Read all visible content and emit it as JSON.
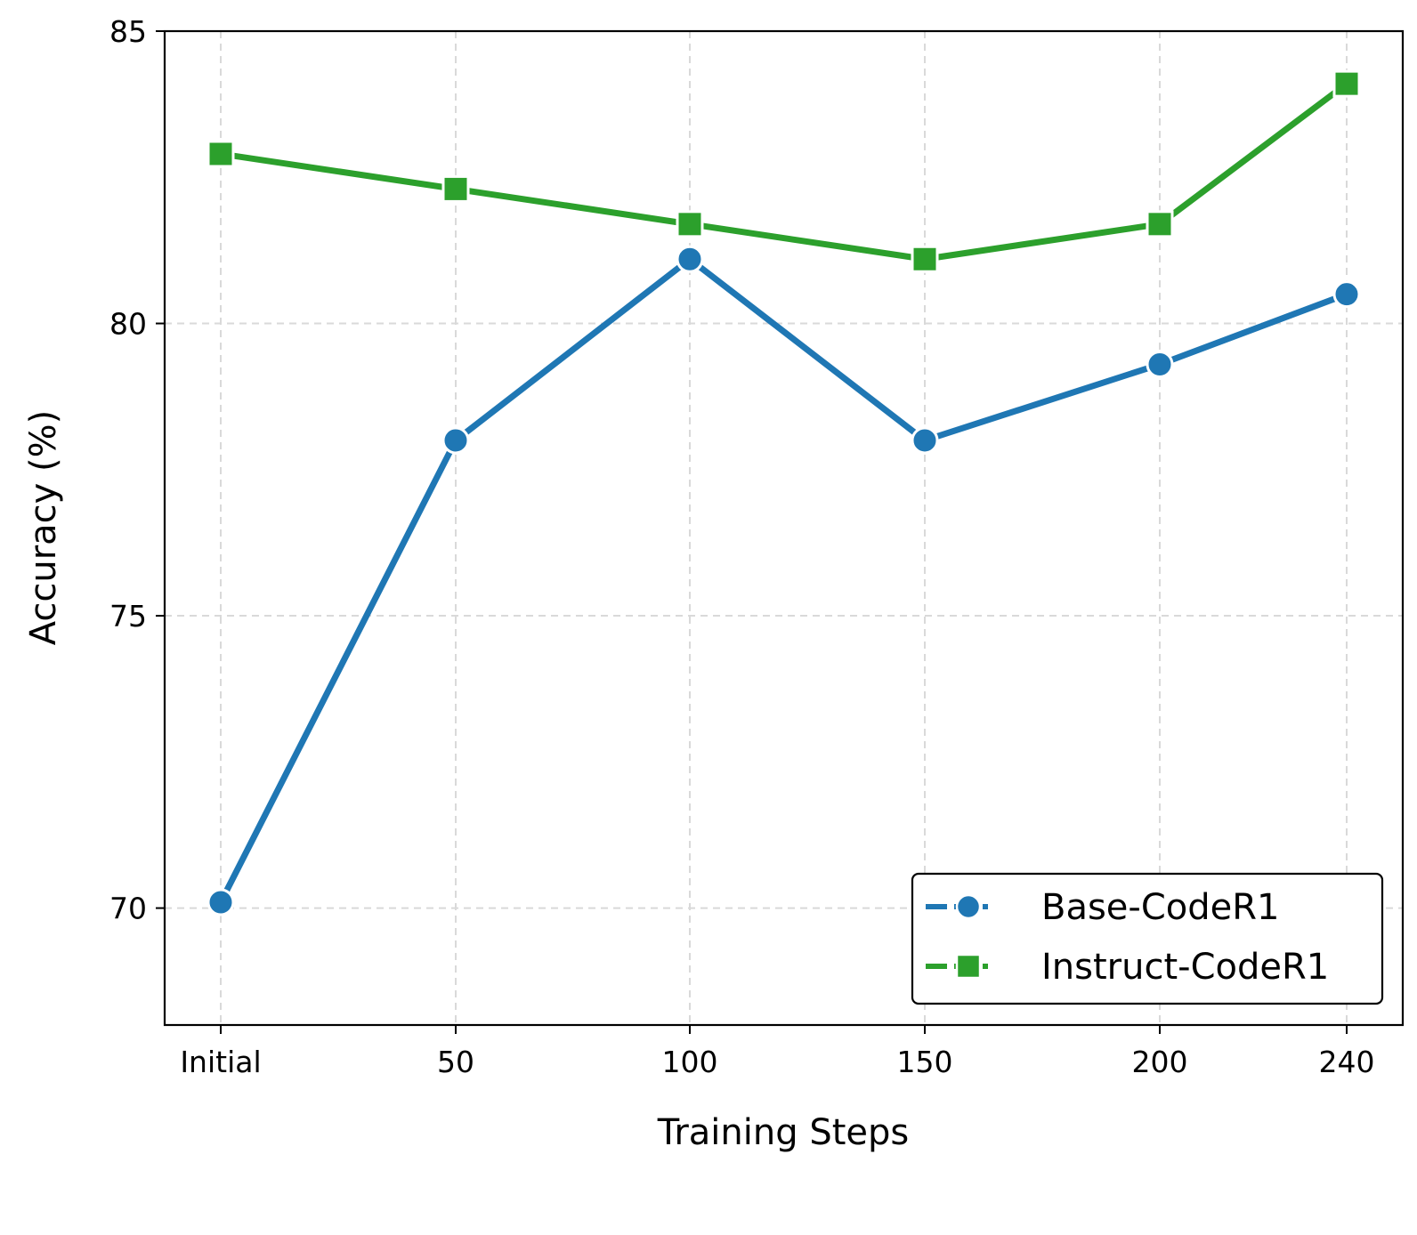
{
  "chart_data": {
    "type": "line",
    "categories": [
      "Initial",
      "50",
      "100",
      "150",
      "200",
      "240"
    ],
    "x": [
      0,
      50,
      100,
      150,
      200,
      240
    ],
    "xlabel": "Training Steps",
    "ylabel": "Accuracy (%)",
    "ylim": [
      68.0,
      85.0
    ],
    "yticks": [
      "70",
      "75",
      "80",
      "85"
    ],
    "grid": true,
    "legend_position": "lower-right",
    "series": [
      {
        "name": "Base-CodeR1",
        "values": [
          70.1,
          78.0,
          81.1,
          78.0,
          79.3,
          80.5
        ],
        "color": "#1f77b4",
        "marker": "circle"
      },
      {
        "name": "Instruct-CodeR1",
        "values": [
          82.9,
          82.3,
          81.7,
          81.1,
          81.7,
          84.1
        ],
        "color": "#2ca02c",
        "marker": "square"
      }
    ]
  }
}
